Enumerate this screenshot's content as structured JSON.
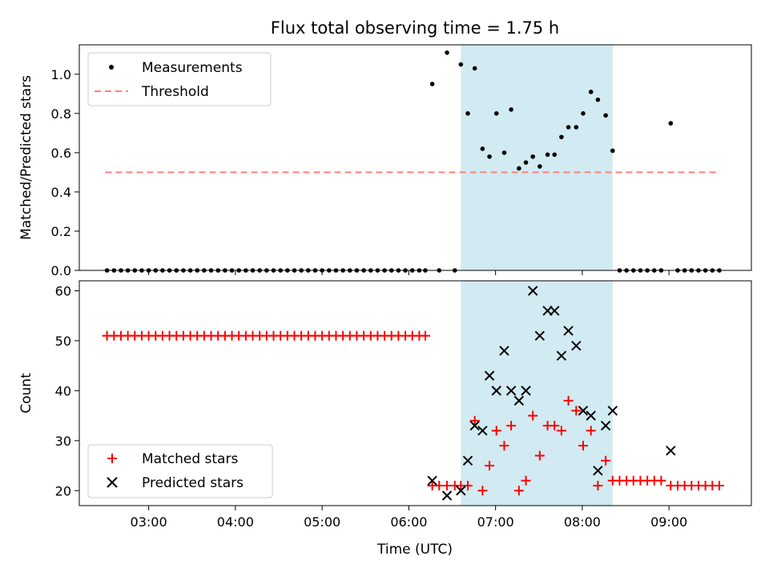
{
  "figure": {
    "title": "Flux total observing time = 1.75 h",
    "xlabel": "Time (UTC)"
  },
  "colors": {
    "band": "#add8e6",
    "threshold": "#ff8080",
    "matched": "#ff0000",
    "predicted": "#000000",
    "measurement": "#000000"
  },
  "chart_data": [
    {
      "type": "scatter",
      "ylabel": "Matched/Predicted stars",
      "ylim": [
        0,
        1.15
      ],
      "xlim_hours": [
        2.2,
        9.95
      ],
      "y_ticks": [
        0.0,
        0.2,
        0.4,
        0.6,
        0.8,
        1.0
      ],
      "y_tick_labels": [
        "0.0",
        "0.2",
        "0.4",
        "0.6",
        "0.8",
        "1.0"
      ],
      "x_ticks_hours": [
        3,
        4,
        5,
        6,
        7,
        8,
        9
      ],
      "legend": {
        "position": "top-left",
        "entries": [
          "Measurements",
          "Threshold"
        ]
      },
      "shaded_span_hours": [
        6.6,
        8.35
      ],
      "threshold": {
        "name": "Threshold",
        "value": 0.5,
        "x_range_hours": [
          2.5,
          9.57
        ]
      },
      "series": [
        {
          "name": "Measurements",
          "marker": "dot",
          "points": [
            [
              2.52,
              0
            ],
            [
              2.6,
              0
            ],
            [
              2.68,
              0
            ],
            [
              2.76,
              0
            ],
            [
              2.84,
              0
            ],
            [
              2.92,
              0
            ],
            [
              3.0,
              0
            ],
            [
              3.08,
              0
            ],
            [
              3.16,
              0
            ],
            [
              3.24,
              0
            ],
            [
              3.32,
              0
            ],
            [
              3.4,
              0
            ],
            [
              3.48,
              0
            ],
            [
              3.56,
              0
            ],
            [
              3.64,
              0
            ],
            [
              3.72,
              0
            ],
            [
              3.8,
              0
            ],
            [
              3.88,
              0
            ],
            [
              3.96,
              0
            ],
            [
              4.04,
              0
            ],
            [
              4.12,
              0
            ],
            [
              4.2,
              0
            ],
            [
              4.28,
              0
            ],
            [
              4.36,
              0
            ],
            [
              4.44,
              0
            ],
            [
              4.52,
              0
            ],
            [
              4.6,
              0
            ],
            [
              4.68,
              0
            ],
            [
              4.76,
              0
            ],
            [
              4.84,
              0
            ],
            [
              4.92,
              0
            ],
            [
              5.0,
              0
            ],
            [
              5.08,
              0
            ],
            [
              5.16,
              0
            ],
            [
              5.24,
              0
            ],
            [
              5.32,
              0
            ],
            [
              5.4,
              0
            ],
            [
              5.48,
              0
            ],
            [
              5.56,
              0
            ],
            [
              5.64,
              0
            ],
            [
              5.72,
              0
            ],
            [
              5.8,
              0
            ],
            [
              5.88,
              0
            ],
            [
              5.96,
              0
            ],
            [
              6.04,
              0
            ],
            [
              6.12,
              0
            ],
            [
              6.19,
              0
            ],
            [
              6.27,
              0.95
            ],
            [
              6.35,
              0
            ],
            [
              6.44,
              1.11
            ],
            [
              6.53,
              0
            ],
            [
              6.6,
              1.05
            ],
            [
              6.68,
              0.8
            ],
            [
              6.76,
              1.03
            ],
            [
              6.85,
              0.62
            ],
            [
              6.93,
              0.58
            ],
            [
              7.01,
              0.8
            ],
            [
              7.1,
              0.6
            ],
            [
              7.18,
              0.82
            ],
            [
              7.27,
              0.52
            ],
            [
              7.35,
              0.55
            ],
            [
              7.43,
              0.58
            ],
            [
              7.51,
              0.53
            ],
            [
              7.6,
              0.59
            ],
            [
              7.68,
              0.59
            ],
            [
              7.76,
              0.68
            ],
            [
              7.84,
              0.73
            ],
            [
              7.93,
              0.73
            ],
            [
              8.01,
              0.8
            ],
            [
              8.1,
              0.91
            ],
            [
              8.18,
              0.87
            ],
            [
              8.27,
              0.79
            ],
            [
              8.35,
              0.61
            ],
            [
              8.43,
              0
            ],
            [
              8.51,
              0
            ],
            [
              8.59,
              0
            ],
            [
              8.67,
              0
            ],
            [
              8.75,
              0
            ],
            [
              8.83,
              0
            ],
            [
              8.91,
              0
            ],
            [
              9.02,
              0.75
            ],
            [
              9.1,
              0
            ],
            [
              9.18,
              0
            ],
            [
              9.26,
              0
            ],
            [
              9.34,
              0
            ],
            [
              9.42,
              0
            ],
            [
              9.5,
              0
            ],
            [
              9.58,
              0
            ]
          ]
        }
      ]
    },
    {
      "type": "scatter",
      "ylabel": "Count",
      "ylim": [
        17,
        62
      ],
      "xlim_hours": [
        2.2,
        9.95
      ],
      "y_ticks": [
        20,
        30,
        40,
        50,
        60
      ],
      "y_tick_labels": [
        "20",
        "30",
        "40",
        "50",
        "60"
      ],
      "x_ticks_hours": [
        3,
        4,
        5,
        6,
        7,
        8,
        9
      ],
      "x_tick_labels": [
        "03:00",
        "04:00",
        "05:00",
        "06:00",
        "07:00",
        "08:00",
        "09:00"
      ],
      "legend": {
        "position": "bottom-left",
        "entries": [
          "Matched stars",
          "Predicted stars"
        ]
      },
      "shaded_span_hours": [
        6.6,
        8.35
      ],
      "series": [
        {
          "name": "Matched stars",
          "marker": "plus",
          "points": [
            [
              2.52,
              51
            ],
            [
              2.6,
              51
            ],
            [
              2.68,
              51
            ],
            [
              2.76,
              51
            ],
            [
              2.84,
              51
            ],
            [
              2.92,
              51
            ],
            [
              3.0,
              51
            ],
            [
              3.08,
              51
            ],
            [
              3.16,
              51
            ],
            [
              3.24,
              51
            ],
            [
              3.32,
              51
            ],
            [
              3.4,
              51
            ],
            [
              3.48,
              51
            ],
            [
              3.56,
              51
            ],
            [
              3.64,
              51
            ],
            [
              3.72,
              51
            ],
            [
              3.8,
              51
            ],
            [
              3.88,
              51
            ],
            [
              3.96,
              51
            ],
            [
              4.04,
              51
            ],
            [
              4.12,
              51
            ],
            [
              4.2,
              51
            ],
            [
              4.28,
              51
            ],
            [
              4.36,
              51
            ],
            [
              4.44,
              51
            ],
            [
              4.52,
              51
            ],
            [
              4.6,
              51
            ],
            [
              4.68,
              51
            ],
            [
              4.76,
              51
            ],
            [
              4.84,
              51
            ],
            [
              4.92,
              51
            ],
            [
              5.0,
              51
            ],
            [
              5.08,
              51
            ],
            [
              5.16,
              51
            ],
            [
              5.24,
              51
            ],
            [
              5.32,
              51
            ],
            [
              5.4,
              51
            ],
            [
              5.48,
              51
            ],
            [
              5.56,
              51
            ],
            [
              5.64,
              51
            ],
            [
              5.72,
              51
            ],
            [
              5.8,
              51
            ],
            [
              5.88,
              51
            ],
            [
              5.96,
              51
            ],
            [
              6.04,
              51
            ],
            [
              6.12,
              51
            ],
            [
              6.19,
              51
            ],
            [
              6.27,
              21
            ],
            [
              6.35,
              21
            ],
            [
              6.44,
              21
            ],
            [
              6.53,
              21
            ],
            [
              6.6,
              21
            ],
            [
              6.68,
              21
            ],
            [
              6.76,
              34
            ],
            [
              6.85,
              20
            ],
            [
              6.93,
              25
            ],
            [
              7.01,
              32
            ],
            [
              7.1,
              29
            ],
            [
              7.18,
              33
            ],
            [
              7.27,
              20
            ],
            [
              7.35,
              22
            ],
            [
              7.43,
              35
            ],
            [
              7.51,
              27
            ],
            [
              7.6,
              33
            ],
            [
              7.68,
              33
            ],
            [
              7.76,
              32
            ],
            [
              7.84,
              38
            ],
            [
              7.93,
              36
            ],
            [
              8.01,
              29
            ],
            [
              8.1,
              32
            ],
            [
              8.18,
              21
            ],
            [
              8.27,
              26
            ],
            [
              8.35,
              22
            ],
            [
              8.43,
              22
            ],
            [
              8.51,
              22
            ],
            [
              8.59,
              22
            ],
            [
              8.67,
              22
            ],
            [
              8.75,
              22
            ],
            [
              8.83,
              22
            ],
            [
              8.91,
              22
            ],
            [
              9.02,
              21
            ],
            [
              9.1,
              21
            ],
            [
              9.18,
              21
            ],
            [
              9.26,
              21
            ],
            [
              9.34,
              21
            ],
            [
              9.42,
              21
            ],
            [
              9.5,
              21
            ],
            [
              9.58,
              21
            ]
          ]
        },
        {
          "name": "Predicted stars",
          "marker": "x",
          "points": [
            [
              6.27,
              22
            ],
            [
              6.44,
              19
            ],
            [
              6.6,
              20
            ],
            [
              6.68,
              26
            ],
            [
              6.76,
              33
            ],
            [
              6.85,
              32
            ],
            [
              6.93,
              43
            ],
            [
              7.01,
              40
            ],
            [
              7.1,
              48
            ],
            [
              7.18,
              40
            ],
            [
              7.27,
              38
            ],
            [
              7.35,
              40
            ],
            [
              7.43,
              60
            ],
            [
              7.51,
              51
            ],
            [
              7.6,
              56
            ],
            [
              7.68,
              56
            ],
            [
              7.76,
              47
            ],
            [
              7.84,
              52
            ],
            [
              7.93,
              49
            ],
            [
              8.01,
              36
            ],
            [
              8.1,
              35
            ],
            [
              8.18,
              24
            ],
            [
              8.27,
              33
            ],
            [
              8.35,
              36
            ],
            [
              9.02,
              28
            ]
          ]
        }
      ]
    }
  ]
}
